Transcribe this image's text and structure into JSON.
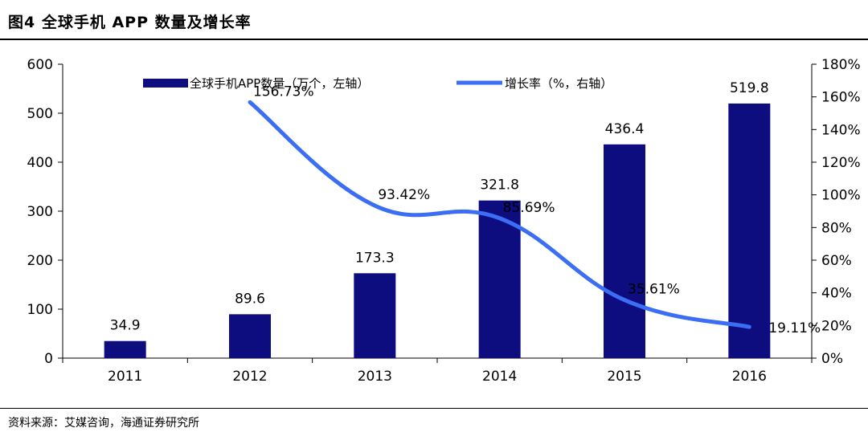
{
  "figure": {
    "title": "图4  全球手机 APP 数量及增长率",
    "source": "资料来源：艾媒咨询，海通证券研究所"
  },
  "colors": {
    "bar": "#0d0d80",
    "line": "#3b6ef5"
  },
  "chart_data": {
    "type": "bar",
    "categories": [
      "2011",
      "2012",
      "2013",
      "2014",
      "2015",
      "2016"
    ],
    "series": [
      {
        "name": "全球手机APP数量（万个，左轴）",
        "type": "bar",
        "axis": "left",
        "values": [
          34.9,
          89.6,
          173.3,
          321.8,
          436.4,
          519.8
        ],
        "labels": [
          "34.9",
          "89.6",
          "173.3",
          "321.8",
          "436.4",
          "519.8"
        ]
      },
      {
        "name": "增长率（%，右轴）",
        "type": "line",
        "axis": "right",
        "values": [
          null,
          156.73,
          93.42,
          85.69,
          35.61,
          19.11
        ],
        "labels": [
          "",
          "156.73%",
          "93.42%",
          "85.69%",
          "35.61%",
          "19.11%"
        ]
      }
    ],
    "y_left": {
      "range": [
        0,
        600
      ],
      "ticks": [
        "0",
        "100",
        "200",
        "300",
        "400",
        "500",
        "600"
      ]
    },
    "y_right": {
      "range": [
        0,
        180
      ],
      "ticks": [
        "0%",
        "20%",
        "40%",
        "60%",
        "80%",
        "100%",
        "120%",
        "140%",
        "160%",
        "180%"
      ]
    },
    "grid": false,
    "legend_position": "top"
  }
}
